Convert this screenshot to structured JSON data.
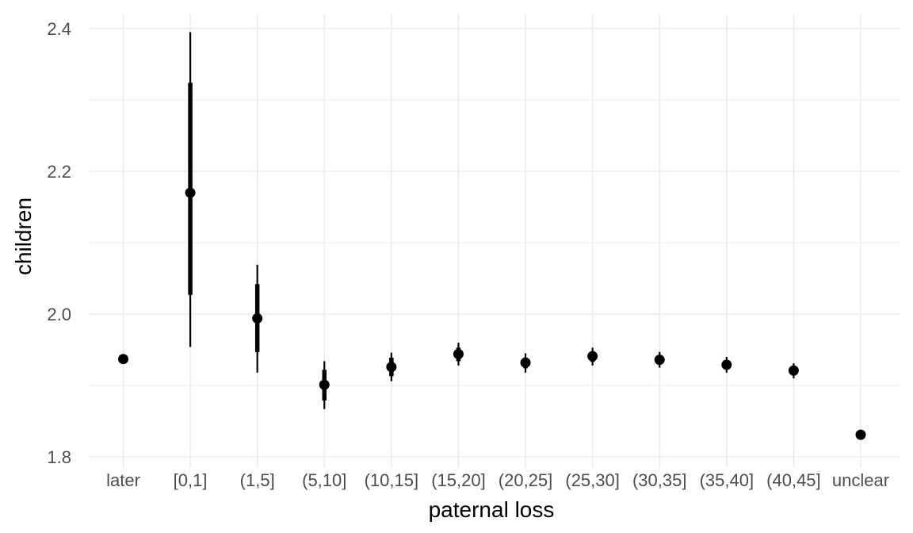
{
  "chart_data": {
    "type": "scatter",
    "xlabel": "paternal loss",
    "ylabel": "children",
    "ylim": [
      1.8,
      2.4
    ],
    "yticks": [
      "1.8",
      "2.0",
      "2.2",
      "2.4"
    ],
    "categories": [
      "later",
      "[0,1]",
      "(1,5]",
      "(5,10]",
      "(10,15]",
      "(15,20]",
      "(20,25]",
      "(25,30]",
      "(30,35]",
      "(35,40]",
      "(40,45]",
      "unclear"
    ],
    "estimate": [
      1.937,
      2.17,
      1.994,
      1.901,
      1.926,
      1.944,
      1.932,
      1.941,
      1.936,
      1.929,
      1.921,
      1.831
    ],
    "inner_interval": [
      [
        1.937,
        1.937
      ],
      [
        2.027,
        2.324
      ],
      [
        1.947,
        2.042
      ],
      [
        1.879,
        1.922
      ],
      [
        1.913,
        1.939
      ],
      [
        1.934,
        1.953
      ],
      [
        1.924,
        1.939
      ],
      [
        1.933,
        1.948
      ],
      [
        1.93,
        1.942
      ],
      [
        1.923,
        1.935
      ],
      [
        1.914,
        1.927
      ],
      [
        1.831,
        1.831
      ]
    ],
    "outer_interval": [
      [
        1.937,
        1.937
      ],
      [
        1.954,
        2.395
      ],
      [
        1.918,
        2.069
      ],
      [
        1.867,
        1.934
      ],
      [
        1.906,
        1.946
      ],
      [
        1.928,
        1.96
      ],
      [
        1.918,
        1.945
      ],
      [
        1.928,
        1.953
      ],
      [
        1.925,
        1.947
      ],
      [
        1.918,
        1.94
      ],
      [
        1.91,
        1.931
      ],
      [
        1.831,
        1.831
      ]
    ],
    "grid": true,
    "legend": "none",
    "colors": {
      "points": "#000000",
      "grid": "#ebebeb",
      "ticks": "#4d4d4d"
    }
  }
}
